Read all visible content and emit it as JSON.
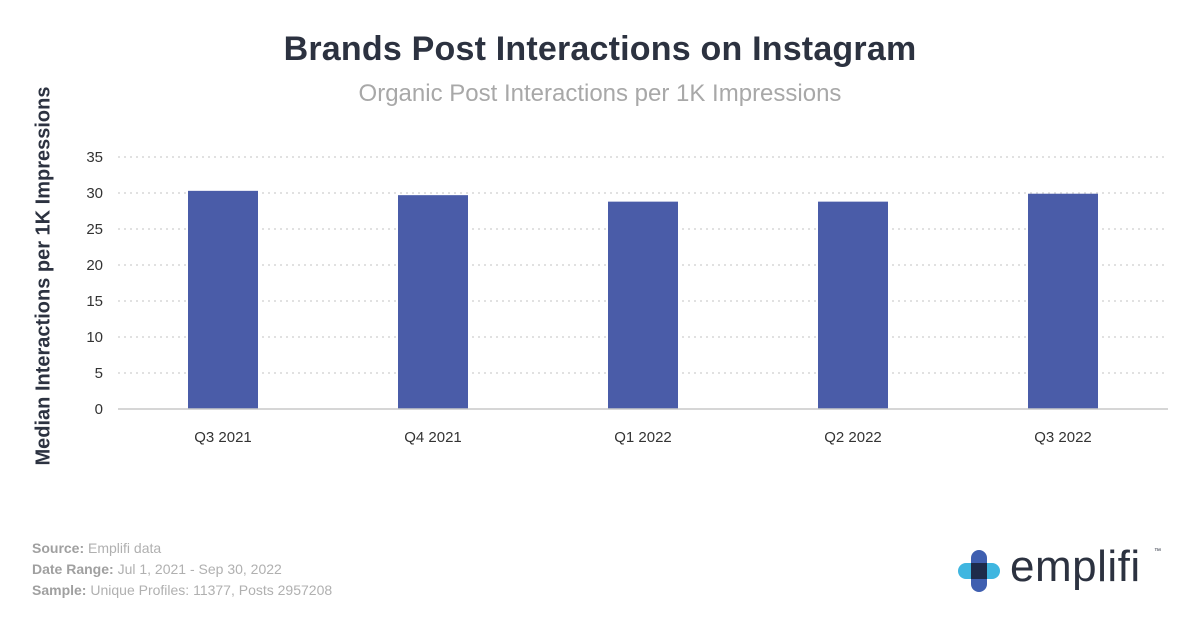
{
  "chart_data": {
    "type": "bar",
    "title": "Brands Post Interactions on Instagram",
    "subtitle": "Organic Post Interactions per 1K Impressions",
    "ylabel": "Median Interactions per 1K Impressions",
    "xlabel": "",
    "categories": [
      "Q3 2021",
      "Q4 2021",
      "Q1 2022",
      "Q2 2022",
      "Q3 2022"
    ],
    "values": [
      30.3,
      29.7,
      28.8,
      28.8,
      29.9
    ],
    "ylim": [
      0,
      35
    ],
    "yticks": [
      "0",
      "5",
      "10",
      "15",
      "20",
      "25",
      "30",
      "35"
    ],
    "grid": "horizontal dotted",
    "bar_color": "#4a5ca8"
  },
  "footer": {
    "source_label": "Source:",
    "source_value": "Emplifi data",
    "date_label": "Date Range:",
    "date_value": "Jul 1, 2021 - Sep 30, 2022",
    "sample_label": "Sample:",
    "sample_value": "Unique Profiles: 11377, Posts 2957208"
  },
  "logo": {
    "text": "emplifi",
    "tm": "™",
    "icon": "emplifi-cross-logo-icon"
  }
}
